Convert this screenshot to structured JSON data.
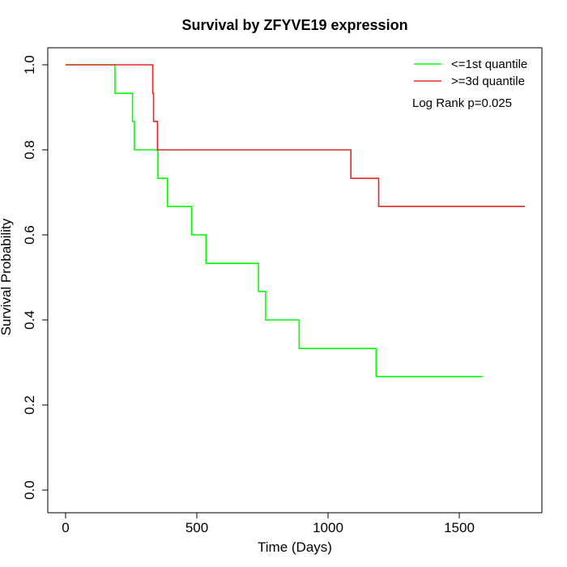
{
  "chart_data": {
    "type": "line",
    "title": "Survival by ZFYVE19 expression",
    "xlabel": "Time (Days)",
    "ylabel": "Survival Probability",
    "xlim": [
      0,
      1750
    ],
    "ylim": [
      0,
      1.0
    ],
    "x_ticks": [
      0,
      500,
      1000,
      1500
    ],
    "y_ticks": [
      0.0,
      0.2,
      0.4,
      0.6,
      0.8,
      1.0
    ],
    "legend_position": "top-right",
    "annotation": "Log Rank p=0.025",
    "series": [
      {
        "name": "<=1st quantile",
        "color": "#00ff00",
        "step_x": [
          0,
          188,
          255,
          262,
          352,
          388,
          480,
          535,
          735,
          762,
          890,
          1183,
          1590
        ],
        "step_y": [
          1.0,
          0.933,
          0.867,
          0.8,
          0.733,
          0.667,
          0.6,
          0.533,
          0.467,
          0.4,
          0.333,
          0.267,
          0.267
        ]
      },
      {
        "name": ">=3d quantile",
        "color": "#e8281e",
        "step_x": [
          0,
          332,
          335,
          350,
          1087,
          1193,
          1750
        ],
        "step_y": [
          1.0,
          0.933,
          0.867,
          0.8,
          0.733,
          0.667,
          0.667
        ]
      }
    ]
  }
}
